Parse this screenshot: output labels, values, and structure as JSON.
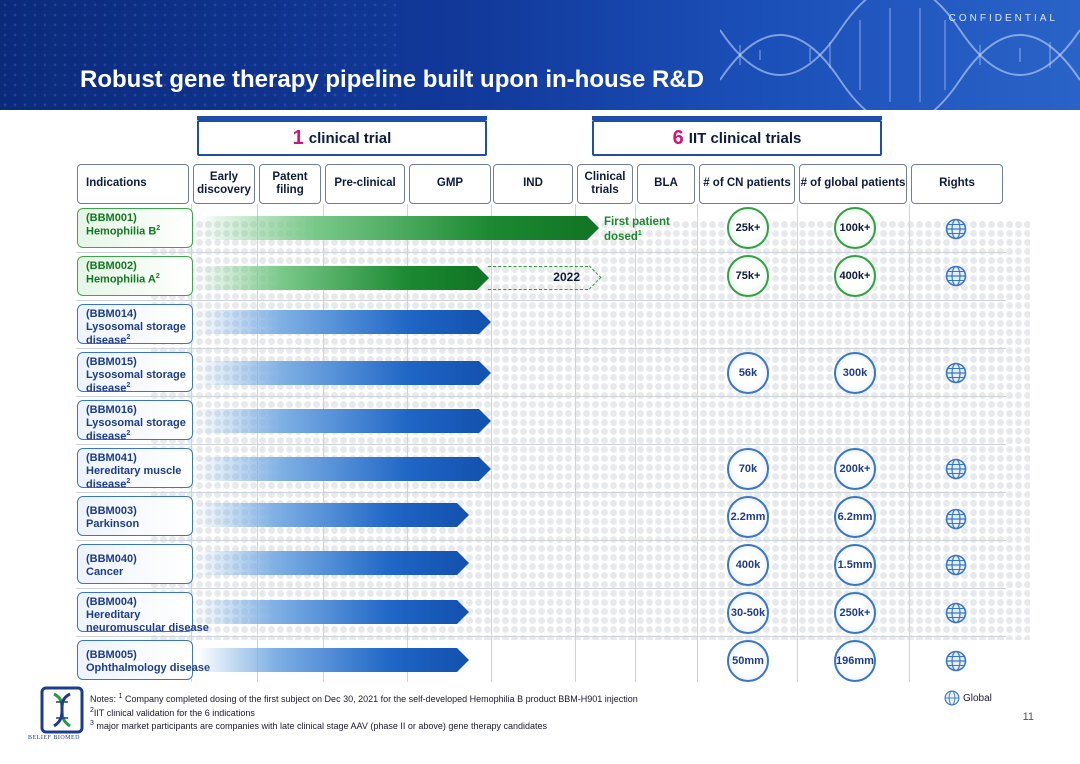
{
  "header": {
    "confidential": "CONFIDENTIAL",
    "title": "Robust gene therapy pipeline built upon in-house R&D"
  },
  "brackets": {
    "left": {
      "num": "1",
      "label": "clinical trial"
    },
    "right": {
      "num": "6",
      "label": "IIT clinical trials"
    }
  },
  "columns": [
    "Indications",
    "Early discovery",
    "Patent filing",
    "Pre-clinical",
    "GMP",
    "IND",
    "Clinical trials",
    "BLA",
    "# of CN patients",
    "# of global patients",
    "Rights"
  ],
  "rows": [
    {
      "code": "(BBM001)",
      "name": "Hemophilia B",
      "sup": "2",
      "cn": "25k+",
      "global": "100k+",
      "rights": "globe-icon",
      "stage": "Clinical trials",
      "color": "green"
    },
    {
      "code": "(BBM002)",
      "name": "Hemophilia A",
      "sup": "2",
      "cn": "75k+",
      "global": "400k+",
      "rights": "globe-icon",
      "stage": "IND",
      "color": "green"
    },
    {
      "code": "(BBM014)",
      "name": "Lysosomal storage",
      "name2": "disease",
      "sup": "2",
      "cn": "",
      "global": "",
      "stage": "IND",
      "color": "blue"
    },
    {
      "code": "(BBM015)",
      "name": "Lysosomal storage",
      "name2": "disease",
      "sup": "2",
      "cn": "56k",
      "global": "300k",
      "rights": "globe-icon",
      "stage": "IND",
      "color": "blue"
    },
    {
      "code": "(BBM016)",
      "name": "Lysosomal storage",
      "name2": "disease",
      "sup": "2",
      "cn": "",
      "global": "",
      "stage": "IND",
      "color": "blue"
    },
    {
      "code": "(BBM041)",
      "name": "Hereditary muscle",
      "name2": "disease",
      "sup": "2",
      "cn": "70k",
      "global": "200k+",
      "rights": "globe-icon",
      "stage": "IND",
      "color": "blue"
    },
    {
      "code": "(BBM003)",
      "name": "Parkinson",
      "cn": "2.2mm",
      "global": "6.2mm",
      "rights": "globe-icon",
      "stage": "GMP",
      "color": "blue"
    },
    {
      "code": "(BBM040)",
      "name": "Cancer",
      "cn": "400k",
      "global": "1.5mm",
      "rights": "globe-icon",
      "stage": "GMP",
      "color": "blue"
    },
    {
      "code": "(BBM004)",
      "name": "Hereditary",
      "name2": "neuromuscular disease",
      "cn": "30-50k",
      "global": "250k+",
      "rights": "globe-icon",
      "stage": "GMP",
      "color": "blue"
    },
    {
      "code": "(BBM005)",
      "name": "Ophthalmology disease",
      "cn": "50mm",
      "global": "196mm",
      "rights": "globe-icon",
      "stage": "GMP",
      "color": "blue"
    }
  ],
  "annotations": {
    "first_patient_line1": "First patient",
    "first_patient_line2": "dosed",
    "first_patient_sup": "1",
    "year_2022": "2022"
  },
  "notes": {
    "label": "Notes:",
    "n1_sup": "1",
    "n1": "Company completed dosing of the first subject on Dec 30, 2021 for the self-developed Hemophilia B product BBM-H901 injection",
    "n2_sup": "2",
    "n2": "IIT clinical validation for the 6 indications",
    "n3_sup": "3",
    "n3": "major market participants are companies with late clinical stage AAV (phase II or above) gene therapy candidates"
  },
  "legend": {
    "icon": "globe-icon",
    "label": "Global"
  },
  "logo_text": "BELIEF BIOMED",
  "page_number": "11",
  "colors": {
    "brand_blue": "#1553b0",
    "green": "#117626",
    "accent_pink": "#d0157a"
  }
}
